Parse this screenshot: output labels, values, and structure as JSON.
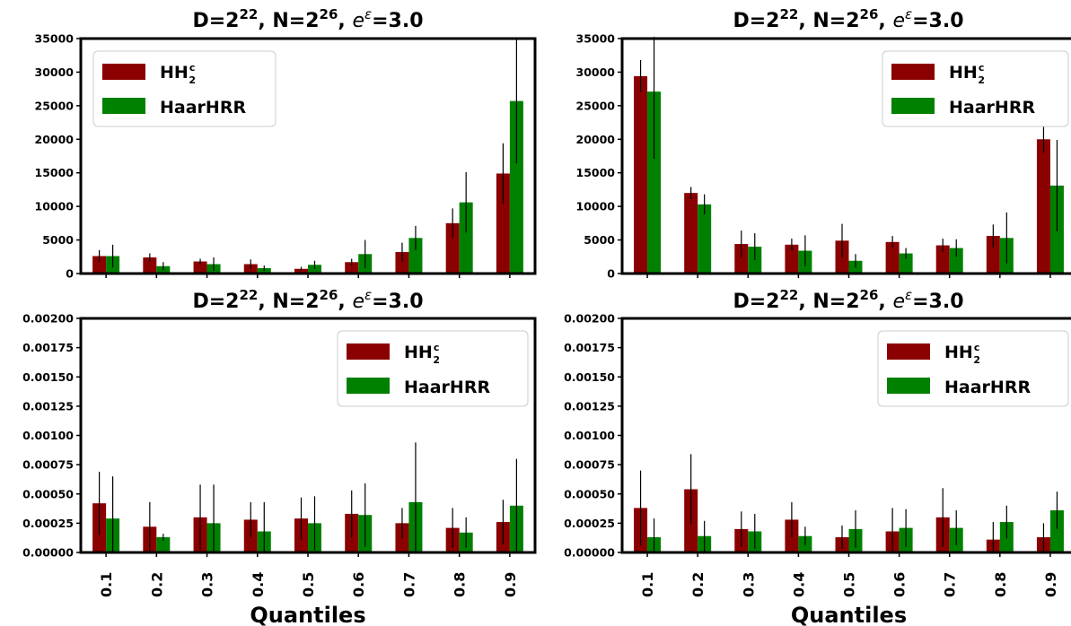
{
  "colors": {
    "hh": "#8b0000",
    "haar": "#008000",
    "err": "#000000"
  },
  "legend_labels": {
    "hh_base": "HH",
    "hh_sup": "c",
    "hh_sub": "2",
    "haar": "HaarHRR"
  },
  "x_tick_labels": [
    "0.1",
    "0.2",
    "0.3",
    "0.4",
    "0.5",
    "0.6",
    "0.7",
    "0.8",
    "0.9"
  ],
  "xlabel": "Quantiles",
  "chart_data": [
    {
      "type": "bar",
      "title": "D=2^22, N=2^26, e^ε=3.0",
      "categories": [
        "0.1",
        "0.2",
        "0.3",
        "0.4",
        "0.5",
        "0.6",
        "0.7",
        "0.8",
        "0.9"
      ],
      "ylim": [
        0,
        35000
      ],
      "yticks": [
        "0",
        "5000",
        "10000",
        "15000",
        "20000",
        "25000",
        "30000",
        "35000"
      ],
      "legend": "top-left",
      "series": [
        {
          "name": "HH2c",
          "values": [
            2600,
            2400,
            1800,
            1400,
            700,
            1700,
            3200,
            7500,
            14900
          ],
          "err": [
            900,
            600,
            400,
            700,
            300,
            500,
            1400,
            2200,
            4500
          ]
        },
        {
          "name": "HaarHRR",
          "values": [
            2600,
            1100,
            1400,
            800,
            1300,
            2900,
            5300,
            10600,
            25700
          ],
          "err": [
            1700,
            600,
            1000,
            400,
            600,
            2100,
            1800,
            4500,
            9300
          ]
        }
      ]
    },
    {
      "type": "bar",
      "title": "D=2^22, N=2^26, e^ε=3.0",
      "categories": [
        "0.1",
        "0.2",
        "0.3",
        "0.4",
        "0.5",
        "0.6",
        "0.7",
        "0.8",
        "0.9"
      ],
      "ylim": [
        0,
        35000
      ],
      "yticks": [
        "0",
        "5000",
        "10000",
        "15000",
        "20000",
        "25000",
        "30000",
        "35000"
      ],
      "legend": "top-right",
      "series": [
        {
          "name": "HH2c",
          "values": [
            29400,
            12000,
            4400,
            4300,
            4900,
            4700,
            4200,
            5600,
            20000
          ],
          "err": [
            2400,
            900,
            2000,
            900,
            2500,
            900,
            1000,
            1700,
            2000
          ]
        },
        {
          "name": "HaarHRR",
          "values": [
            27100,
            10300,
            4000,
            3400,
            1900,
            3000,
            3800,
            5300,
            13100
          ],
          "err": [
            10000,
            1500,
            2000,
            2300,
            1000,
            800,
            1300,
            3800,
            6800
          ]
        }
      ]
    },
    {
      "type": "bar",
      "title": "D=2^22, N=2^26, e^ε=3.0",
      "categories": [
        "0.1",
        "0.2",
        "0.3",
        "0.4",
        "0.5",
        "0.6",
        "0.7",
        "0.8",
        "0.9"
      ],
      "ylim": [
        0,
        0.002
      ],
      "yticks": [
        "0.00000",
        "0.00025",
        "0.00050",
        "0.00075",
        "0.00100",
        "0.00125",
        "0.00150",
        "0.00175",
        "0.00200"
      ],
      "legend": "top-right",
      "series": [
        {
          "name": "HH2c",
          "values": [
            0.00042,
            0.00022,
            0.0003,
            0.00028,
            0.00029,
            0.00033,
            0.00025,
            0.00021,
            0.00026
          ],
          "err": [
            0.00027,
            0.00021,
            0.00028,
            0.00015,
            0.00018,
            0.0002,
            0.00013,
            0.00017,
            0.00019
          ]
        },
        {
          "name": "HaarHRR",
          "values": [
            0.00029,
            0.00013,
            0.00025,
            0.00018,
            0.00025,
            0.00032,
            0.00043,
            0.00017,
            0.0004
          ],
          "err": [
            0.00036,
            3e-05,
            0.00033,
            0.00025,
            0.00023,
            0.00027,
            0.00051,
            0.00013,
            0.0004
          ]
        }
      ]
    },
    {
      "type": "bar",
      "title": "D=2^22, N=2^26, e^ε=3.0",
      "categories": [
        "0.1",
        "0.2",
        "0.3",
        "0.4",
        "0.5",
        "0.6",
        "0.7",
        "0.8",
        "0.9"
      ],
      "ylim": [
        0,
        0.002
      ],
      "yticks": [
        "0.00000",
        "0.00025",
        "0.00050",
        "0.00075",
        "0.00100",
        "0.00125",
        "0.00150",
        "0.00175",
        "0.00200"
      ],
      "legend": "top-right",
      "series": [
        {
          "name": "HH2c",
          "values": [
            0.00038,
            0.00054,
            0.0002,
            0.00028,
            0.00013,
            0.00018,
            0.0003,
            0.00011,
            0.00013
          ],
          "err": [
            0.00032,
            0.0003,
            0.00015,
            0.00015,
            0.0001,
            0.0002,
            0.00025,
            0.00015,
            0.00012
          ]
        },
        {
          "name": "HaarHRR",
          "values": [
            0.00013,
            0.00014,
            0.00018,
            0.00014,
            0.0002,
            0.00021,
            0.00021,
            0.00026,
            0.00036
          ],
          "err": [
            0.00016,
            0.00013,
            0.00015,
            8e-05,
            0.00016,
            0.00016,
            0.00015,
            0.00014,
            0.00016
          ]
        }
      ]
    }
  ]
}
